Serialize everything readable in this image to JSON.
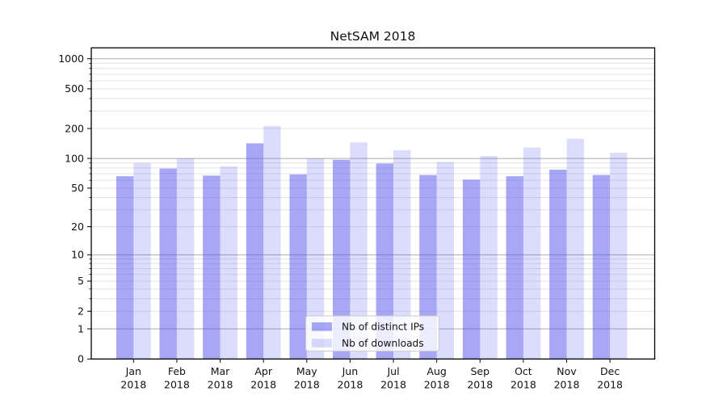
{
  "chart_data": {
    "type": "bar",
    "title": "NetSAM 2018",
    "categories": [
      "Jan",
      "Feb",
      "Mar",
      "Apr",
      "May",
      "Jun",
      "Jul",
      "Aug",
      "Sep",
      "Oct",
      "Nov",
      "Dec"
    ],
    "category_year": "2018",
    "series": [
      {
        "name": "Nb of distinct IPs",
        "values": [
          66,
          79,
          67,
          142,
          69,
          97,
          89,
          68,
          61,
          66,
          77,
          68
        ]
      },
      {
        "name": "Nb of downloads",
        "values": [
          90,
          100,
          83,
          212,
          100,
          145,
          121,
          92,
          106,
          129,
          158,
          114
        ]
      }
    ],
    "yscale": "log10(y+1)",
    "y_ticks_labeled": [
      0,
      1,
      2,
      5,
      10,
      20,
      50,
      100,
      200,
      500,
      1000
    ],
    "ylim": [
      0,
      1270
    ],
    "xlabel": "",
    "ylabel": "",
    "grid": "major-and-minor-horizontal",
    "legend_position": "lower-center-inside"
  },
  "colors": {
    "bar_distinct_ips": "rgba(80,80,238,0.5)",
    "bar_downloads": "rgba(80,80,238,0.2)",
    "grid_major": "#ababab",
    "grid_minor": "#e4e4e4",
    "axis_spine": "#000000",
    "text": "#111111",
    "legend_border": "#cccccc",
    "legend_background": "rgba(255,255,255,0.8)"
  }
}
